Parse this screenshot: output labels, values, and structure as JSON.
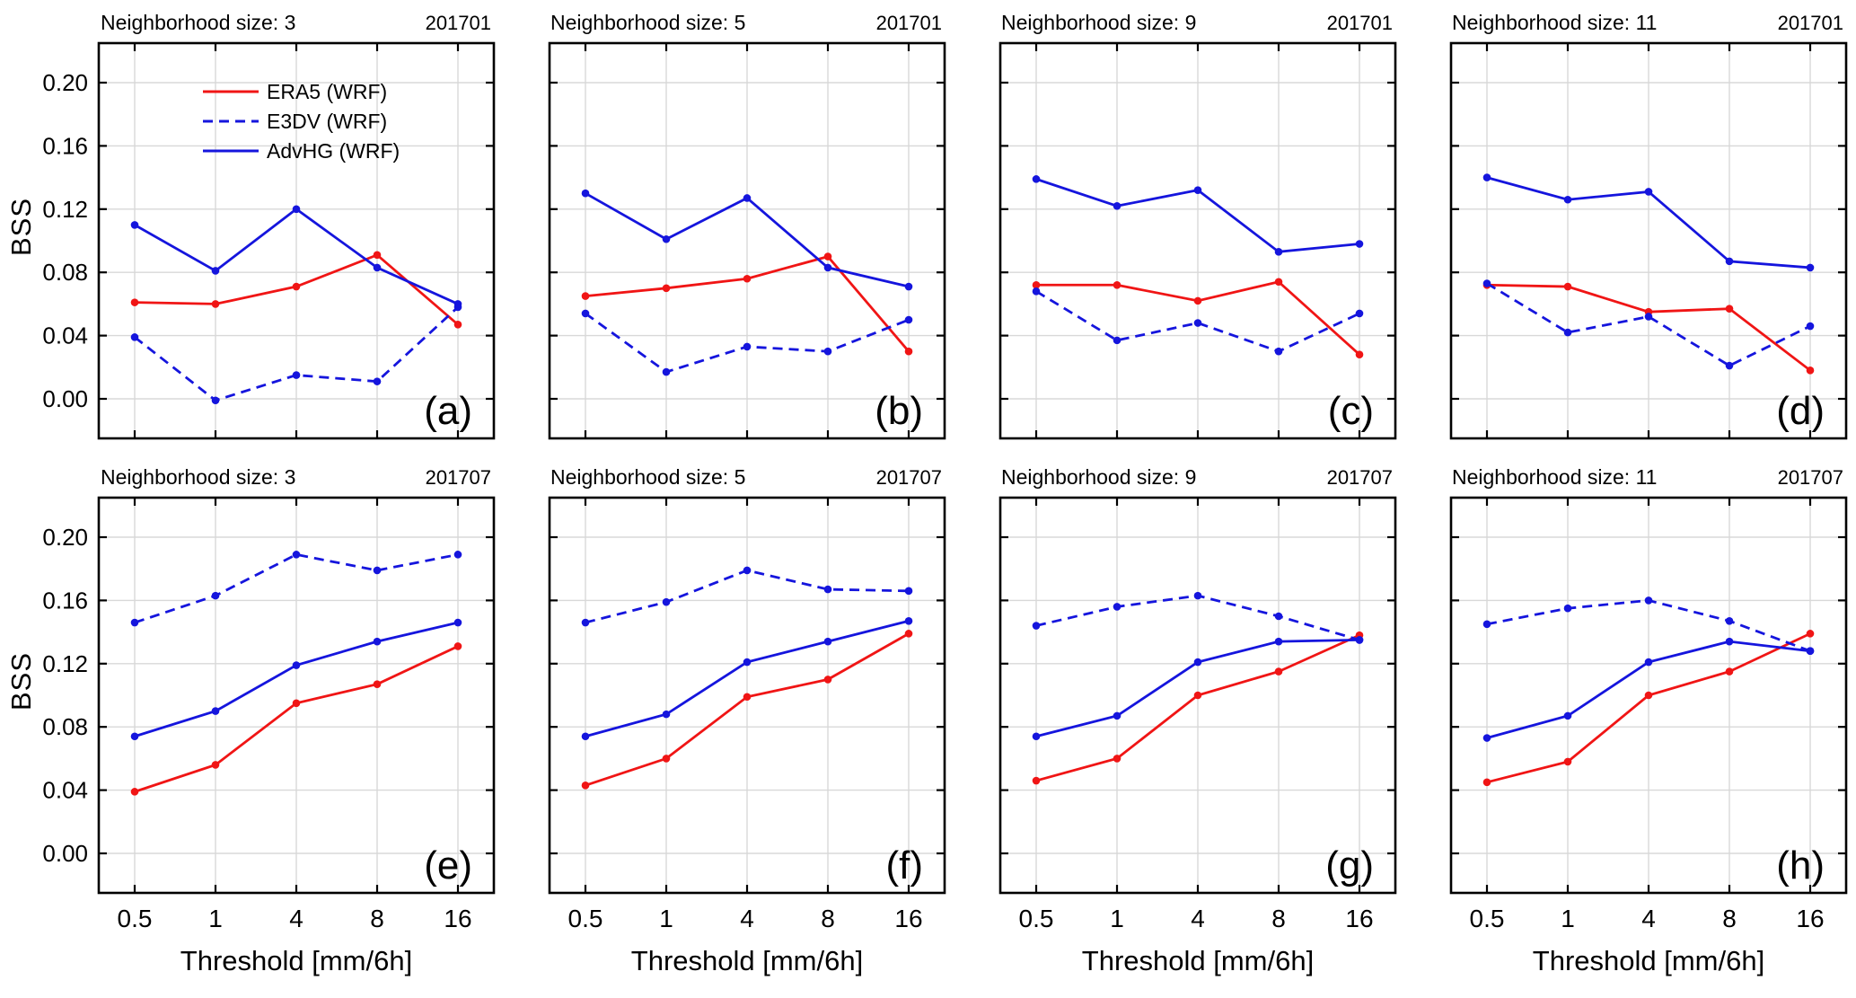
{
  "axes": {
    "ylabel": "BSS",
    "xlabel": "Threshold [mm/6h]",
    "categories": [
      "0.5",
      "1",
      "4",
      "8",
      "16"
    ],
    "yticks": [
      0.0,
      0.04,
      0.08,
      0.12,
      0.16,
      0.2
    ],
    "ylim": [
      -0.025,
      0.225
    ],
    "grid": true
  },
  "colors": {
    "red": "#f01515",
    "blue": "#1515dd",
    "grid": "#d8d8d8",
    "axis": "#000000"
  },
  "legend": {
    "location": "upper-left of panel (a)",
    "entries": [
      {
        "label": "ERA5 (WRF)",
        "color": "#f01515",
        "style": "solid"
      },
      {
        "label": "E3DV (WRF)",
        "color": "#1515dd",
        "style": "dashed"
      },
      {
        "label": "AdvHG (WRF)",
        "color": "#1515dd",
        "style": "solid"
      }
    ]
  },
  "chart_data": [
    {
      "type": "line",
      "letter": "(a)",
      "title": "Neighborhood size: 3",
      "year": "201701",
      "show_legend": true,
      "categories": [
        "0.5",
        "1",
        "4",
        "8",
        "16"
      ],
      "series": [
        {
          "name": "ERA5 (WRF)",
          "color": "#f01515",
          "style": "solid",
          "values": [
            0.061,
            0.06,
            0.071,
            0.091,
            0.047
          ]
        },
        {
          "name": "E3DV (WRF)",
          "color": "#1515dd",
          "style": "dashed",
          "values": [
            0.039,
            -0.001,
            0.015,
            0.011,
            0.058
          ]
        },
        {
          "name": "AdvHG (WRF)",
          "color": "#1515dd",
          "style": "solid",
          "values": [
            0.11,
            0.081,
            0.12,
            0.083,
            0.06
          ]
        }
      ]
    },
    {
      "type": "line",
      "letter": "(b)",
      "title": "Neighborhood size: 5",
      "year": "201701",
      "show_legend": false,
      "categories": [
        "0.5",
        "1",
        "4",
        "8",
        "16"
      ],
      "series": [
        {
          "name": "ERA5 (WRF)",
          "color": "#f01515",
          "style": "solid",
          "values": [
            0.065,
            0.07,
            0.076,
            0.09,
            0.03
          ]
        },
        {
          "name": "E3DV (WRF)",
          "color": "#1515dd",
          "style": "dashed",
          "values": [
            0.054,
            0.017,
            0.033,
            0.03,
            0.05
          ]
        },
        {
          "name": "AdvHG (WRF)",
          "color": "#1515dd",
          "style": "solid",
          "values": [
            0.13,
            0.101,
            0.127,
            0.083,
            0.071
          ]
        }
      ]
    },
    {
      "type": "line",
      "letter": "(c)",
      "title": "Neighborhood size: 9",
      "year": "201701",
      "show_legend": false,
      "categories": [
        "0.5",
        "1",
        "4",
        "8",
        "16"
      ],
      "series": [
        {
          "name": "ERA5 (WRF)",
          "color": "#f01515",
          "style": "solid",
          "values": [
            0.072,
            0.072,
            0.062,
            0.074,
            0.028
          ]
        },
        {
          "name": "E3DV (WRF)",
          "color": "#1515dd",
          "style": "dashed",
          "values": [
            0.068,
            0.037,
            0.048,
            0.03,
            0.054
          ]
        },
        {
          "name": "AdvHG (WRF)",
          "color": "#1515dd",
          "style": "solid",
          "values": [
            0.139,
            0.122,
            0.132,
            0.093,
            0.098
          ]
        }
      ]
    },
    {
      "type": "line",
      "letter": "(d)",
      "title": "Neighborhood size: 11",
      "year": "201701",
      "show_legend": false,
      "categories": [
        "0.5",
        "1",
        "4",
        "8",
        "16"
      ],
      "series": [
        {
          "name": "ERA5 (WRF)",
          "color": "#f01515",
          "style": "solid",
          "values": [
            0.072,
            0.071,
            0.055,
            0.057,
            0.018
          ]
        },
        {
          "name": "E3DV (WRF)",
          "color": "#1515dd",
          "style": "dashed",
          "values": [
            0.073,
            0.042,
            0.052,
            0.021,
            0.046
          ]
        },
        {
          "name": "AdvHG (WRF)",
          "color": "#1515dd",
          "style": "solid",
          "values": [
            0.14,
            0.126,
            0.131,
            0.087,
            0.083
          ]
        }
      ]
    },
    {
      "type": "line",
      "letter": "(e)",
      "title": "Neighborhood size: 3",
      "year": "201707",
      "show_legend": false,
      "categories": [
        "0.5",
        "1",
        "4",
        "8",
        "16"
      ],
      "series": [
        {
          "name": "ERA5 (WRF)",
          "color": "#f01515",
          "style": "solid",
          "values": [
            0.039,
            0.056,
            0.095,
            0.107,
            0.131
          ]
        },
        {
          "name": "E3DV (WRF)",
          "color": "#1515dd",
          "style": "dashed",
          "values": [
            0.146,
            0.163,
            0.189,
            0.179,
            0.189
          ]
        },
        {
          "name": "AdvHG (WRF)",
          "color": "#1515dd",
          "style": "solid",
          "values": [
            0.074,
            0.09,
            0.119,
            0.134,
            0.146
          ]
        }
      ]
    },
    {
      "type": "line",
      "letter": "(f)",
      "title": "Neighborhood size: 5",
      "year": "201707",
      "show_legend": false,
      "categories": [
        "0.5",
        "1",
        "4",
        "8",
        "16"
      ],
      "series": [
        {
          "name": "ERA5 (WRF)",
          "color": "#f01515",
          "style": "solid",
          "values": [
            0.043,
            0.06,
            0.099,
            0.11,
            0.139
          ]
        },
        {
          "name": "E3DV (WRF)",
          "color": "#1515dd",
          "style": "dashed",
          "values": [
            0.146,
            0.159,
            0.179,
            0.167,
            0.166
          ]
        },
        {
          "name": "AdvHG (WRF)",
          "color": "#1515dd",
          "style": "solid",
          "values": [
            0.074,
            0.088,
            0.121,
            0.134,
            0.147
          ]
        }
      ]
    },
    {
      "type": "line",
      "letter": "(g)",
      "title": "Neighborhood size: 9",
      "year": "201707",
      "show_legend": false,
      "categories": [
        "0.5",
        "1",
        "4",
        "8",
        "16"
      ],
      "series": [
        {
          "name": "ERA5 (WRF)",
          "color": "#f01515",
          "style": "solid",
          "values": [
            0.046,
            0.06,
            0.1,
            0.115,
            0.138
          ]
        },
        {
          "name": "E3DV (WRF)",
          "color": "#1515dd",
          "style": "dashed",
          "values": [
            0.144,
            0.156,
            0.163,
            0.15,
            0.135
          ]
        },
        {
          "name": "AdvHG (WRF)",
          "color": "#1515dd",
          "style": "solid",
          "values": [
            0.074,
            0.087,
            0.121,
            0.134,
            0.135
          ]
        }
      ]
    },
    {
      "type": "line",
      "letter": "(h)",
      "title": "Neighborhood size: 11",
      "year": "201707",
      "show_legend": false,
      "categories": [
        "0.5",
        "1",
        "4",
        "8",
        "16"
      ],
      "series": [
        {
          "name": "ERA5 (WRF)",
          "color": "#f01515",
          "style": "solid",
          "values": [
            0.045,
            0.058,
            0.1,
            0.115,
            0.139
          ]
        },
        {
          "name": "E3DV (WRF)",
          "color": "#1515dd",
          "style": "dashed",
          "values": [
            0.145,
            0.155,
            0.16,
            0.147,
            0.128
          ]
        },
        {
          "name": "AdvHG (WRF)",
          "color": "#1515dd",
          "style": "solid",
          "values": [
            0.073,
            0.087,
            0.121,
            0.134,
            0.128
          ]
        }
      ]
    }
  ]
}
